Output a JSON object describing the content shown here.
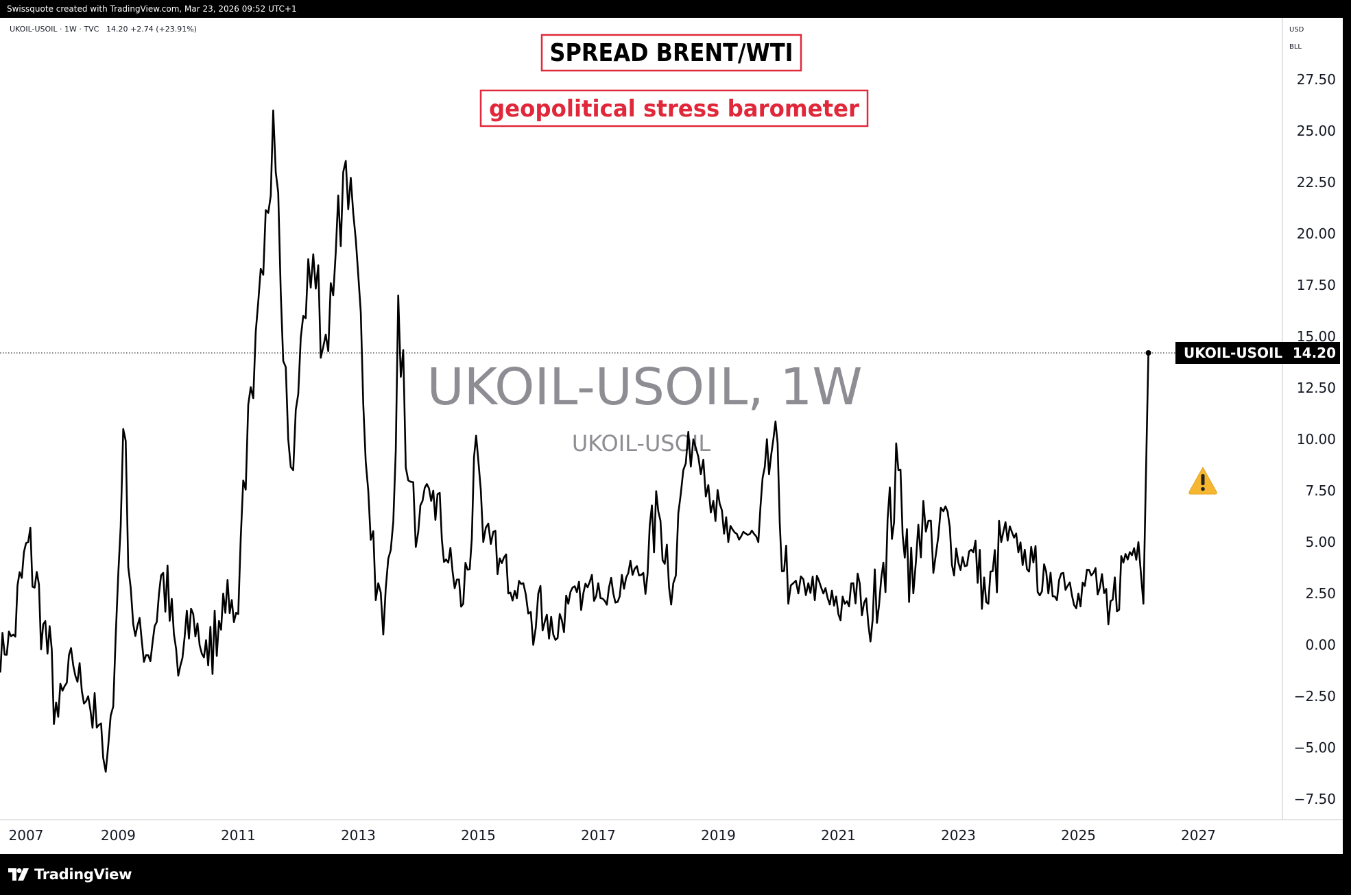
{
  "header": {
    "credit": "Swissquote created with TradingView.com, Mar 23, 2026 09:52 UTC+1"
  },
  "legend": {
    "symbol": "UKOIL-USOIL · 1W · TVC",
    "last": "14.20",
    "change": "+2.74 (+23.91%)"
  },
  "annotations": {
    "title": "SPREAD BRENT/WTI",
    "subtitle": "geopolitical stress barometer"
  },
  "watermark": {
    "main": "UKOIL-USOIL, 1W",
    "sub": "UKOIL-USOIL"
  },
  "axis": {
    "currency": "USD",
    "unit": "BLL"
  },
  "price_label": {
    "symbol": "UKOIL-USOIL",
    "value": "14.20"
  },
  "footer": {
    "brand": "TradingView"
  },
  "colors": {
    "line": "#000000",
    "title_border": "#e0283a",
    "subtitle_text": "#e0283a",
    "watermark": "#8d8d93",
    "label_bg": "#000000",
    "warning": "#f5b731"
  },
  "chart_data": {
    "type": "line",
    "series": [
      {
        "x": [
          "2007-01",
          "2007-04",
          "2007-07",
          "2007-10",
          "2008-01",
          "2008-04",
          "2008-07",
          "2008-10",
          "2008-12",
          "2009-02",
          "2009-04",
          "2009-07",
          "2009-10",
          "2010-01",
          "2010-04",
          "2010-07",
          "2010-10",
          "2011-01",
          "2011-02",
          "2011-04",
          "2011-06",
          "2011-08",
          "2011-09",
          "2011-11",
          "2011-12",
          "2012-02",
          "2012-04",
          "2012-06",
          "2012-08",
          "2012-10",
          "2012-12",
          "2013-01",
          "2013-03",
          "2013-05",
          "2013-06",
          "2013-08",
          "2013-09",
          "2013-11",
          "2014-01",
          "2014-04",
          "2014-07",
          "2014-10",
          "2015-01",
          "2015-02",
          "2015-04",
          "2015-07",
          "2015-10",
          "2015-12",
          "2016-01",
          "2016-04",
          "2016-07",
          "2016-10",
          "2017-01",
          "2017-04",
          "2017-07",
          "2017-10",
          "2018-01",
          "2018-04",
          "2018-06",
          "2018-08",
          "2018-10",
          "2018-12",
          "2019-03",
          "2019-06",
          "2019-09",
          "2019-12",
          "2020-03",
          "2020-04",
          "2020-05",
          "2020-07",
          "2020-10",
          "2021-01",
          "2021-04",
          "2021-07",
          "2021-10",
          "2022-01",
          "2022-04",
          "2022-06",
          "2022-08",
          "2022-10",
          "2023-01",
          "2023-04",
          "2023-07",
          "2023-10",
          "2024-01",
          "2024-04",
          "2024-07",
          "2024-10",
          "2025-01",
          "2025-04",
          "2025-07",
          "2025-10",
          "2026-01",
          "2026-02",
          "2026-03"
        ],
        "y": [
          -0.5,
          0.5,
          5.0,
          1.0,
          -3.5,
          -1.0,
          -2.5,
          -5.5,
          -3.0,
          10.5,
          1.0,
          -0.5,
          3.5,
          -1.5,
          1.5,
          -1.0,
          2.5,
          1.5,
          8.0,
          12.0,
          18.0,
          26.0,
          22.0,
          10.0,
          8.5,
          16.0,
          19.0,
          14.5,
          17.0,
          23.0,
          21.0,
          18.0,
          7.5,
          3.0,
          0.5,
          6.0,
          17.0,
          8.0,
          5.5,
          7.5,
          4.0,
          2.0,
          9.0,
          5.0,
          5.5,
          2.5,
          3.0,
          0.0,
          2.5,
          0.5,
          2.0,
          2.5,
          3.0,
          2.5,
          3.5,
          3.5,
          6.5,
          3.0,
          8.5,
          10.0,
          9.0,
          7.0,
          5.0,
          5.5,
          5.0,
          10.0,
          2.0,
          3.0,
          2.5,
          3.0,
          2.5,
          1.5,
          3.0,
          1.0,
          4.0,
          8.5,
          2.5,
          7.0,
          3.5,
          6.5,
          4.0,
          4.5,
          2.0,
          5.5,
          4.5,
          4.0,
          2.5,
          3.5,
          2.5,
          3.5,
          1.0,
          4.0,
          5.0,
          2.0,
          14.2
        ]
      }
    ],
    "x_ticks": [
      "2007",
      "2009",
      "2011",
      "2013",
      "2015",
      "2017",
      "2019",
      "2021",
      "2023",
      "2025",
      "2027"
    ],
    "y_ticks": [
      "27.50",
      "25.00",
      "22.50",
      "20.00",
      "17.50",
      "15.00",
      "12.50",
      "10.00",
      "7.50",
      "5.00",
      "2.50",
      "0.00",
      "−2.50",
      "−5.00",
      "−7.50"
    ],
    "ylim": [
      -8.5,
      30.5
    ],
    "xlim": [
      "2007",
      "2028"
    ],
    "grid": false,
    "legend_position": "top-left"
  }
}
